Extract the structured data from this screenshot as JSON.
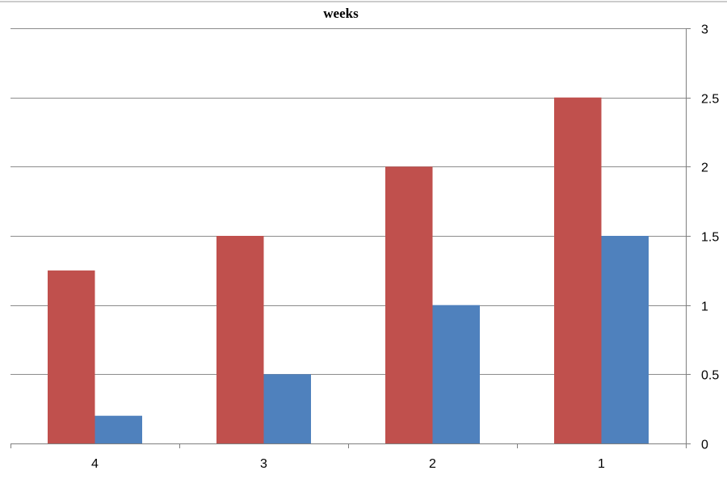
{
  "chart_data": {
    "type": "bar",
    "title": "weeks",
    "xlabel": "",
    "ylabel": "",
    "categories": [
      "4",
      "3",
      "2",
      "1"
    ],
    "series": [
      {
        "color": "#c0504d",
        "values": [
          1.25,
          1.5,
          2.0,
          2.5
        ]
      },
      {
        "color": "#4f81bd",
        "values": [
          0.2,
          0.5,
          1.0,
          1.5
        ]
      }
    ],
    "ylim": [
      0,
      3
    ],
    "yticks": [
      "0",
      "0.5",
      "1",
      "1.5",
      "2",
      "2.5",
      "3"
    ],
    "y_axis_side": "right",
    "grid": true,
    "legend": "none"
  }
}
